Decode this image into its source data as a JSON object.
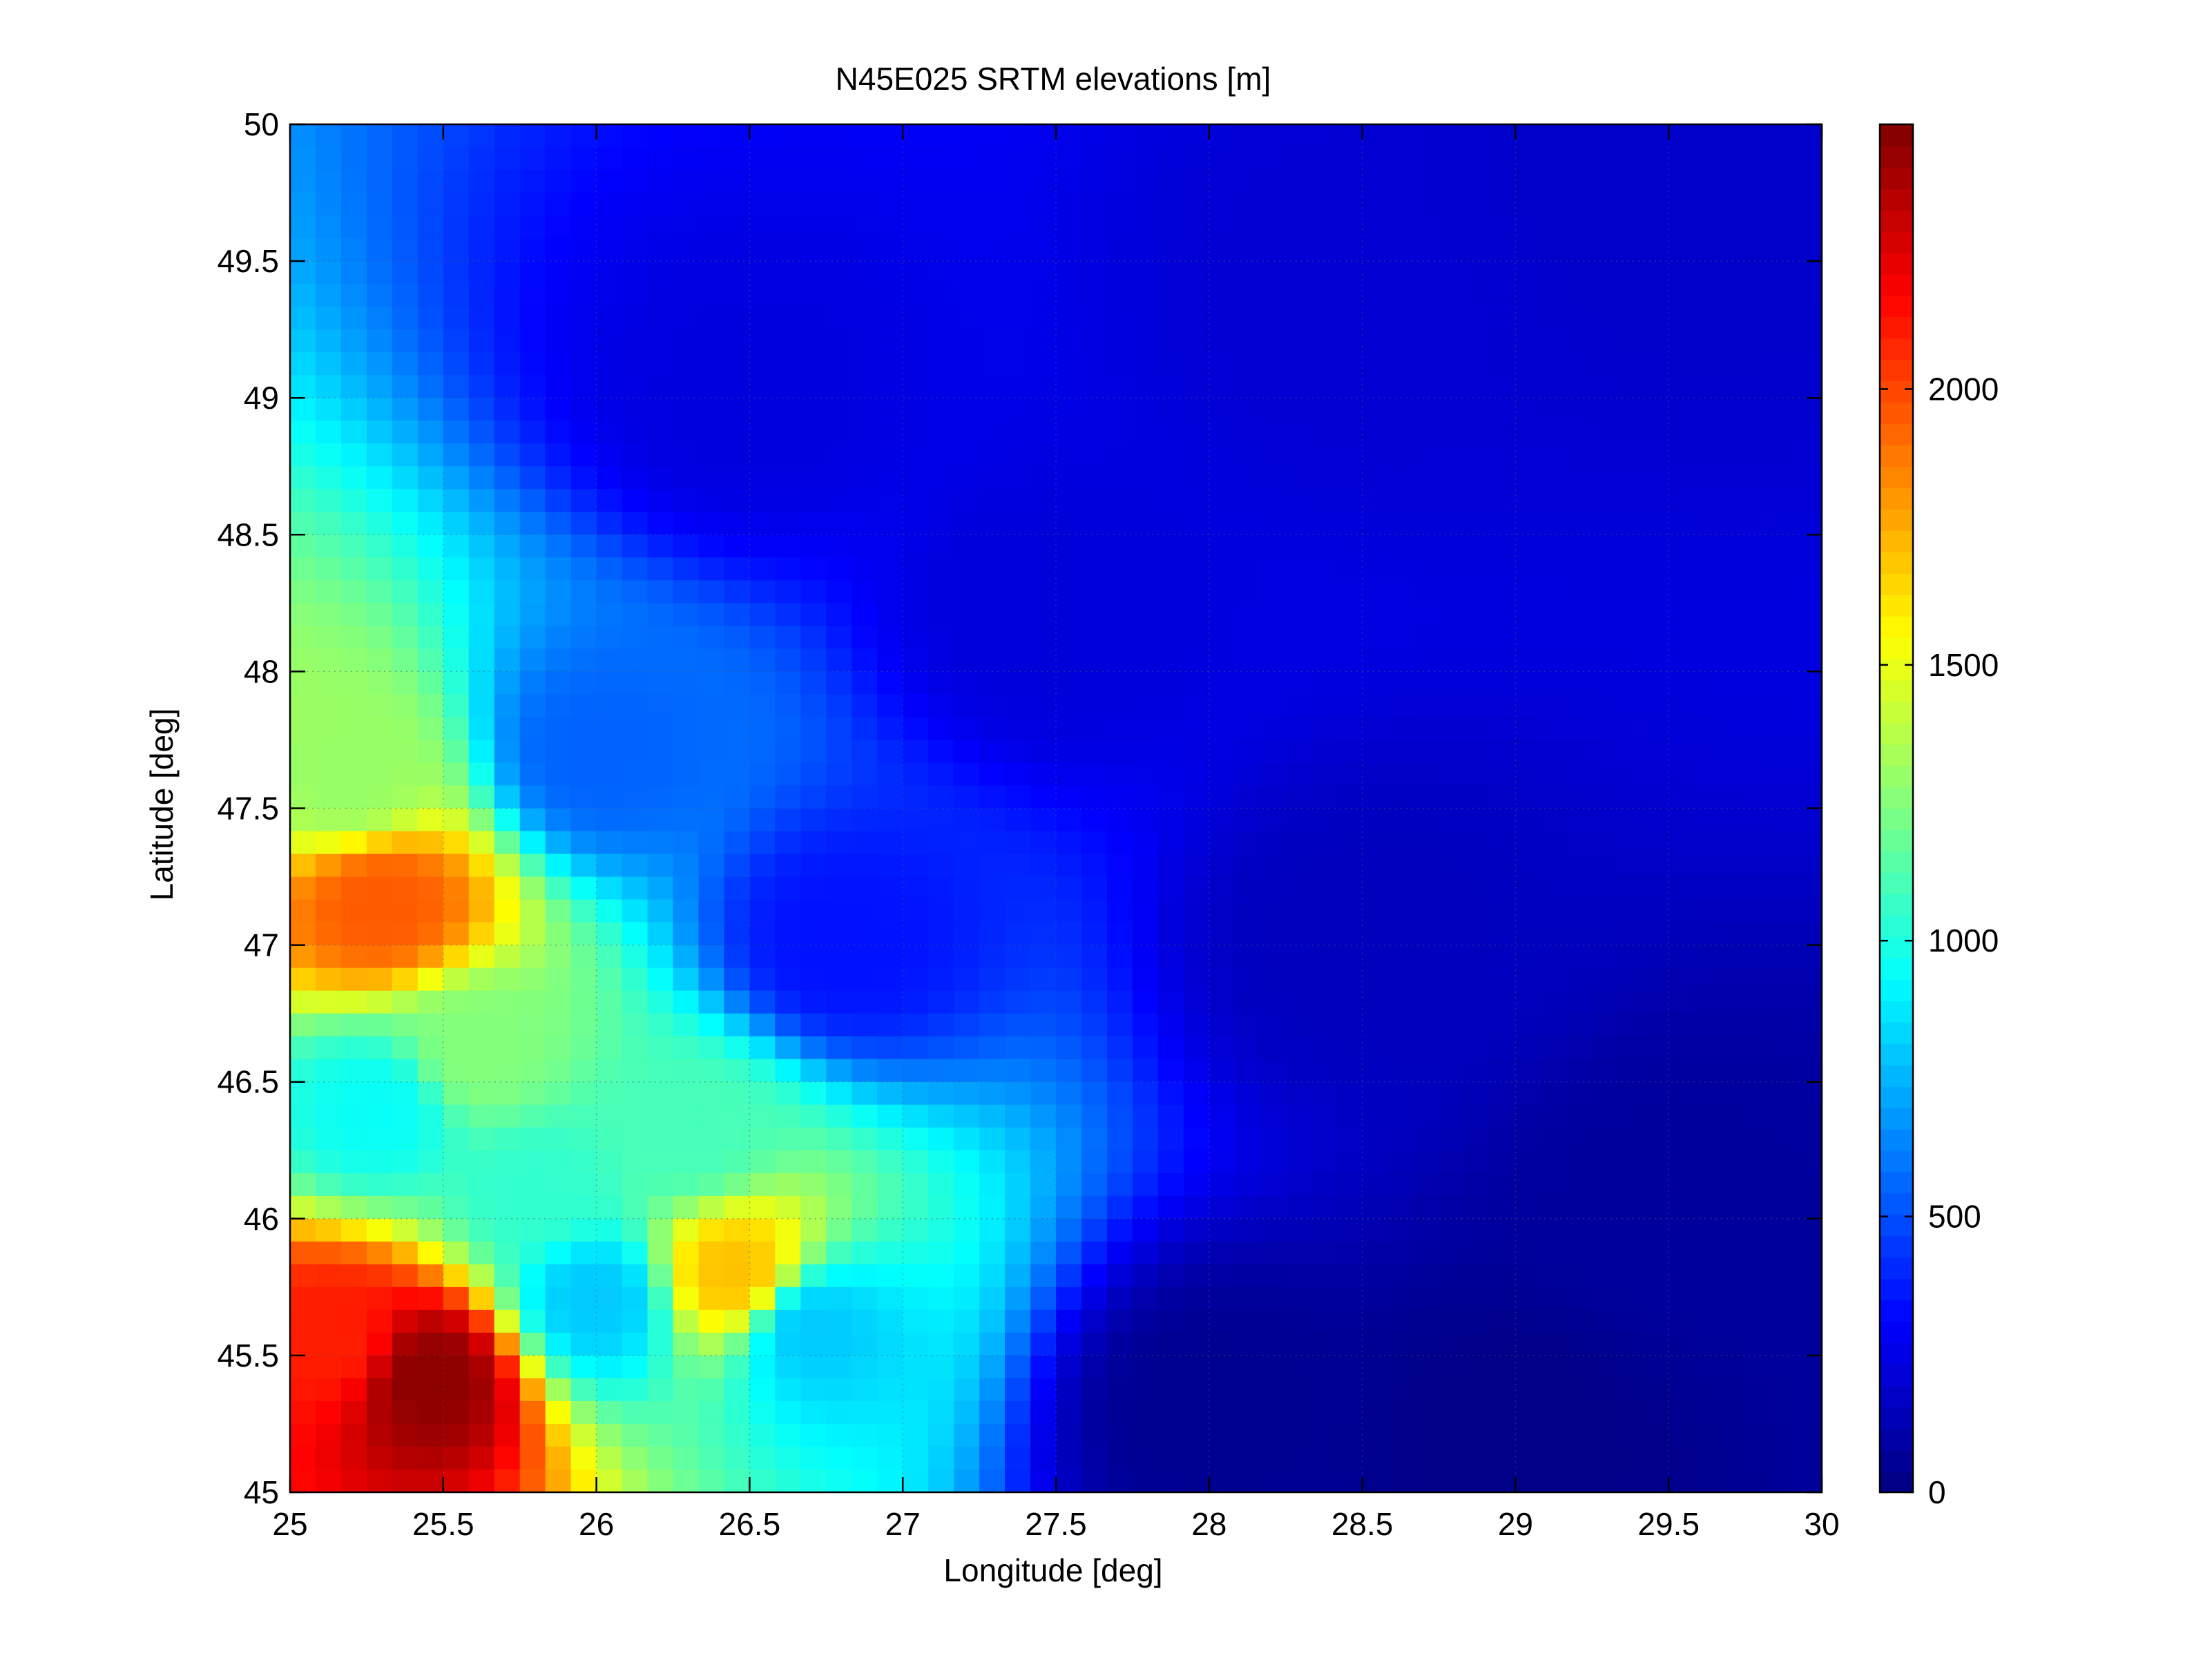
{
  "chart_data": {
    "type": "heatmap",
    "title": "N45E025 SRTM elevations [m]",
    "xlabel": "Longitude [deg]",
    "ylabel": "Latitude [deg]",
    "xlim": [
      25,
      30
    ],
    "ylim": [
      45,
      50
    ],
    "x_ticks": [
      25,
      25.5,
      26,
      26.5,
      27,
      27.5,
      28,
      28.5,
      29,
      29.5,
      30
    ],
    "x_tick_labels": [
      "25",
      "25.5",
      "26",
      "26.5",
      "27",
      "27.5",
      "28",
      "28.5",
      "29",
      "29.5",
      "30"
    ],
    "y_ticks": [
      45,
      45.5,
      46,
      46.5,
      47,
      47.5,
      48,
      48.5,
      49,
      49.5,
      50
    ],
    "y_tick_labels": [
      "45",
      "45.5",
      "46",
      "46.5",
      "47",
      "47.5",
      "48",
      "48.5",
      "49",
      "49.5",
      "50"
    ],
    "grid": true,
    "colormap": "jet",
    "colorbar": {
      "range": [
        0,
        2480
      ],
      "ticks": [
        0,
        500,
        1000,
        1500,
        2000
      ],
      "tick_labels": [
        "0",
        "500",
        "1000",
        "1500",
        "2000"
      ],
      "placement": "right"
    },
    "approximate_regions": [
      {
        "lon": 25.45,
        "lat": 45.42,
        "elevation": 2450
      },
      {
        "lon": 25.15,
        "lat": 45.55,
        "elevation": 2100
      },
      {
        "lon": 25.3,
        "lat": 47.15,
        "elevation": 1950
      },
      {
        "lon": 26.45,
        "lat": 45.8,
        "elevation": 1700
      },
      {
        "lon": 25.2,
        "lat": 47.6,
        "elevation": 1300
      },
      {
        "lon": 25.6,
        "lat": 46.6,
        "elevation": 1250
      },
      {
        "lon": 26.3,
        "lat": 46.3,
        "elevation": 1100
      },
      {
        "lon": 25.8,
        "lat": 46.1,
        "elevation": 1050
      },
      {
        "lon": 25.3,
        "lat": 46.4,
        "elevation": 950
      },
      {
        "lon": 26.0,
        "lat": 45.7,
        "elevation": 800
      },
      {
        "lon": 26.7,
        "lat": 45.6,
        "elevation": 800
      },
      {
        "lon": 26.0,
        "lat": 47.7,
        "elevation": 550
      },
      {
        "lon": 26.8,
        "lat": 47.0,
        "elevation": 350
      },
      {
        "lon": 27.5,
        "lat": 48.2,
        "elevation": 220
      },
      {
        "lon": 26.5,
        "lat": 49.0,
        "elevation": 230
      },
      {
        "lon": 28.5,
        "lat": 49.3,
        "elevation": 200
      },
      {
        "lon": 29.5,
        "lat": 49.7,
        "elevation": 180
      },
      {
        "lon": 28.5,
        "lat": 47.0,
        "elevation": 150
      },
      {
        "lon": 29.5,
        "lat": 46.0,
        "elevation": 70
      },
      {
        "lon": 28.0,
        "lat": 45.3,
        "elevation": 40
      },
      {
        "lon": 29.0,
        "lat": 45.2,
        "elevation": 20
      }
    ]
  },
  "colors": {
    "axes": "#000000",
    "grid": "#4a5a6a",
    "background": "#ffffff"
  }
}
